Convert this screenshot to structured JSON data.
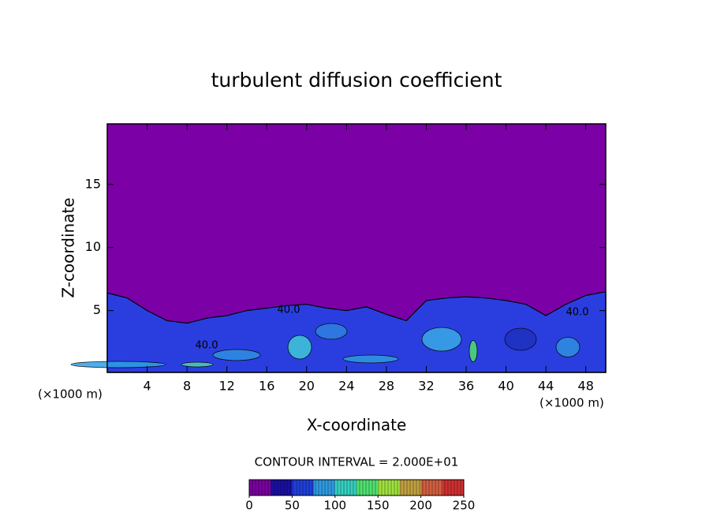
{
  "chart_data": {
    "type": "field",
    "title": "turbulent diffusion coefficient",
    "x_label": "X-coordinate",
    "y_label": "Z-coordinate",
    "x_unit_left": "(×1000 m)",
    "x_unit_right": "(×1000 m)",
    "xlim": [
      0,
      50
    ],
    "ylim": [
      0.1,
      19.8
    ],
    "xticks": [
      4,
      8,
      12,
      16,
      20,
      24,
      28,
      32,
      36,
      40,
      44,
      48
    ],
    "yticks": [
      5,
      10,
      15
    ],
    "background_color": "#7b00a6",
    "field_color": "#2a3ee0",
    "layer_top": {
      "x": [
        0,
        2,
        4,
        6,
        8,
        10,
        12,
        14,
        16,
        18,
        20,
        22,
        24,
        26,
        28,
        30,
        32,
        34,
        36,
        38,
        40,
        42,
        44,
        46,
        48,
        50
      ],
      "z": [
        6.4,
        6,
        5,
        4.2,
        4,
        4.4,
        4.6,
        5,
        5.2,
        5.4,
        5.5,
        5.2,
        5,
        5.3,
        4.7,
        4.2,
        5.8,
        6,
        6.1,
        6,
        5.8,
        5.5,
        4.6,
        5.5,
        6.2,
        6.5
      ]
    },
    "contour_labels": [
      "40.0",
      "40.0",
      "40.0"
    ],
    "contour_interval_text": "CONTOUR INTERVAL = 2.000E+01",
    "colorbar": {
      "lim": [
        0,
        250
      ],
      "ticks": [
        0,
        50,
        100,
        150,
        200,
        250
      ],
      "colors": [
        "#7a00a0",
        "#1a0fa0",
        "#1f3fd8",
        "#2f9ae0",
        "#36d0c0",
        "#50e070",
        "#a0e040",
        "#c0a040",
        "#d06040",
        "#d03030"
      ]
    }
  }
}
